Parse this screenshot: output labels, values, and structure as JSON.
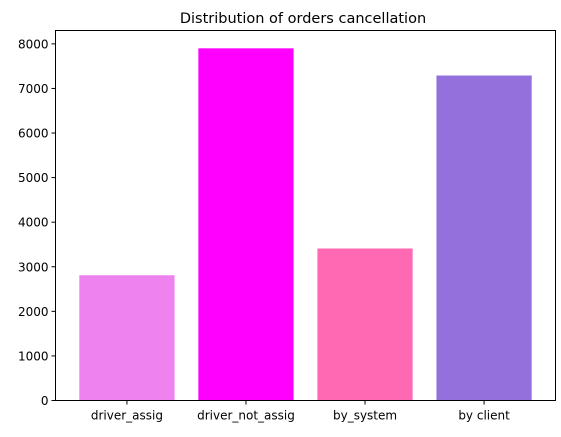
{
  "chart_data": {
    "type": "bar",
    "title": "Distribution of orders cancellation",
    "xlabel": "",
    "ylabel": "",
    "categories": [
      "driver_assig",
      "driver_not_assig",
      "by_system",
      "by client"
    ],
    "values": [
      2810,
      7900,
      3410,
      7290
    ],
    "colors": [
      "#ee82ee",
      "#ff00ff",
      "#ff69b4",
      "#9370db"
    ],
    "ylim": [
      0,
      8300
    ],
    "yticks": [
      0,
      1000,
      2000,
      3000,
      4000,
      5000,
      6000,
      7000,
      8000
    ],
    "grid": false,
    "legend": "none"
  }
}
